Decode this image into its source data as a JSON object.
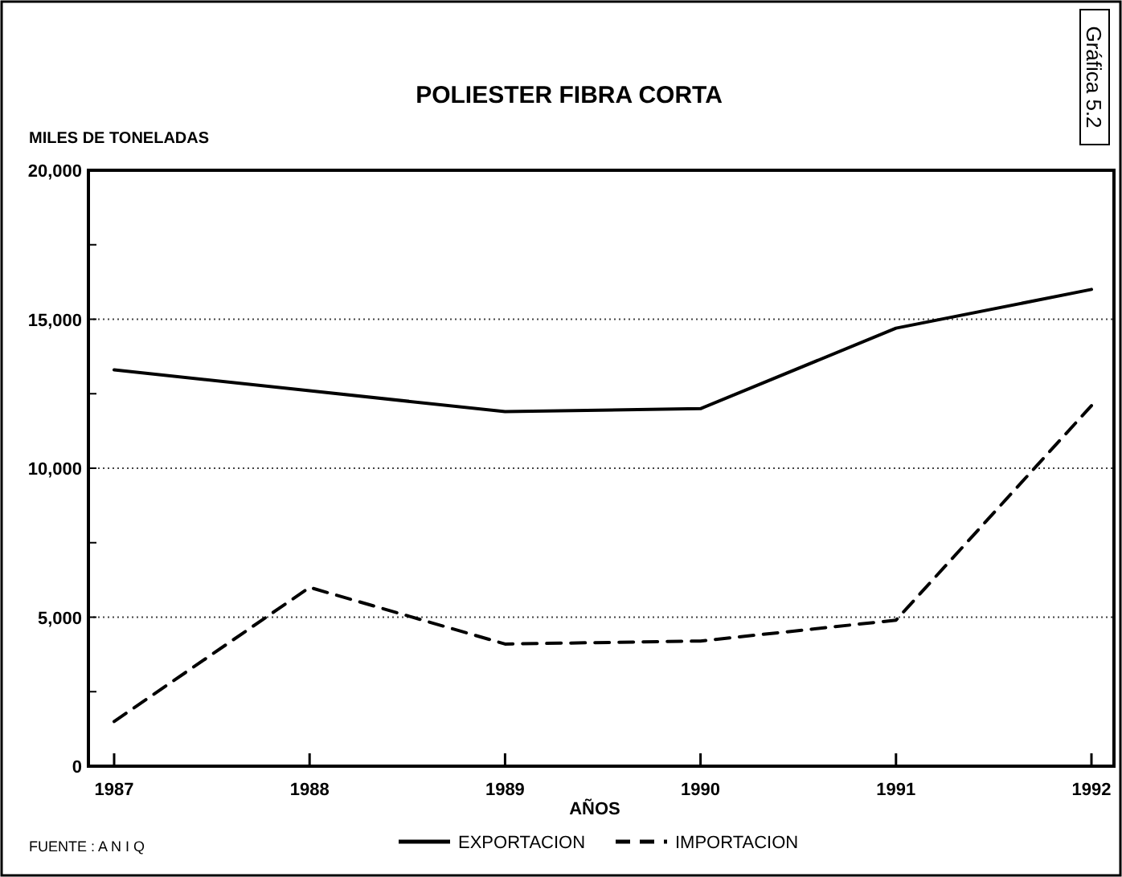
{
  "chart_data": {
    "type": "line",
    "title": "POLIESTER FIBRA CORTA",
    "ylabel": "MILES DE TONELADAS",
    "xlabel": "AÑOS",
    "categories": [
      "1987",
      "1988",
      "1989",
      "1990",
      "1991",
      "1992"
    ],
    "series": [
      {
        "name": "EXPORTACION",
        "color": "#000000",
        "line_style": "solid",
        "values": [
          13300,
          12600,
          11900,
          12000,
          14700,
          16000
        ]
      },
      {
        "name": "IMPORTACION",
        "color": "#000000",
        "line_style": "dashed",
        "values": [
          1500,
          6000,
          4100,
          4200,
          4900,
          12100
        ]
      }
    ],
    "ylim": [
      0,
      20000
    ],
    "yticks": [
      {
        "value": 0,
        "label": "0"
      },
      {
        "value": 2500,
        "label": null
      },
      {
        "value": 5000,
        "label": "5,000"
      },
      {
        "value": 7500,
        "label": null
      },
      {
        "value": 10000,
        "label": "10,000"
      },
      {
        "value": 12500,
        "label": null
      },
      {
        "value": 15000,
        "label": "15,000"
      },
      {
        "value": 17500,
        "label": null
      },
      {
        "value": 20000,
        "label": "20,000"
      }
    ],
    "grid": "y",
    "legend": "bottom",
    "marker": "none",
    "annotations": [
      "FUENTE : A N I Q",
      "Gráfica 5.2"
    ]
  }
}
